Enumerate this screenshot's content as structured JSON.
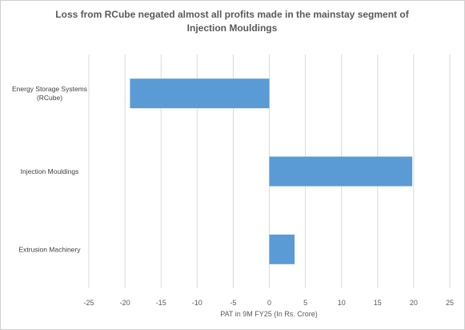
{
  "chart_data": {
    "type": "bar",
    "orientation": "horizontal",
    "title_lines": [
      "Loss from RCube negated almost all profits made in the mainstay segment of",
      "Injection Mouldings"
    ],
    "categories": [
      [
        "Energy Storage Systems",
        "(RCube)"
      ],
      [
        "Injection Mouldings"
      ],
      [
        "Extrusion Machinery"
      ]
    ],
    "values": [
      -19.3,
      19.8,
      3.5
    ],
    "xlabel": "PAT in 9M FY25 (In Rs. Crore)",
    "xlim": [
      -25,
      25
    ],
    "xticks": [
      -25,
      -20,
      -15,
      -10,
      -5,
      0,
      5,
      10,
      15,
      20,
      25
    ],
    "grid": "vertical",
    "bar_color": "#5b9bd5",
    "grid_color": "#d9d9d9"
  }
}
